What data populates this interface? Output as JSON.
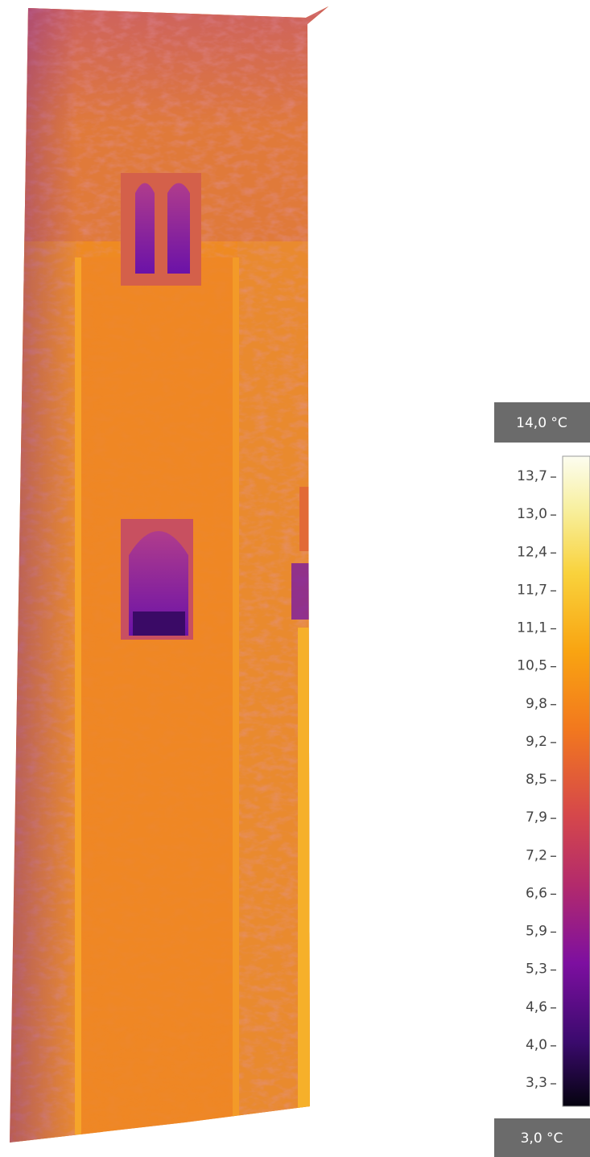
{
  "scale": {
    "max": "14,0 °C",
    "min": "3,0 °C",
    "ticks": [
      "13,7",
      "13,0",
      "12,4",
      "11,7",
      "11,1",
      "10,5",
      "9,8",
      "9,2",
      "8,5",
      "7,9",
      "7,2",
      "6,6",
      "5,9",
      "5,3",
      "4,6",
      "4,0",
      "3,3"
    ]
  }
}
